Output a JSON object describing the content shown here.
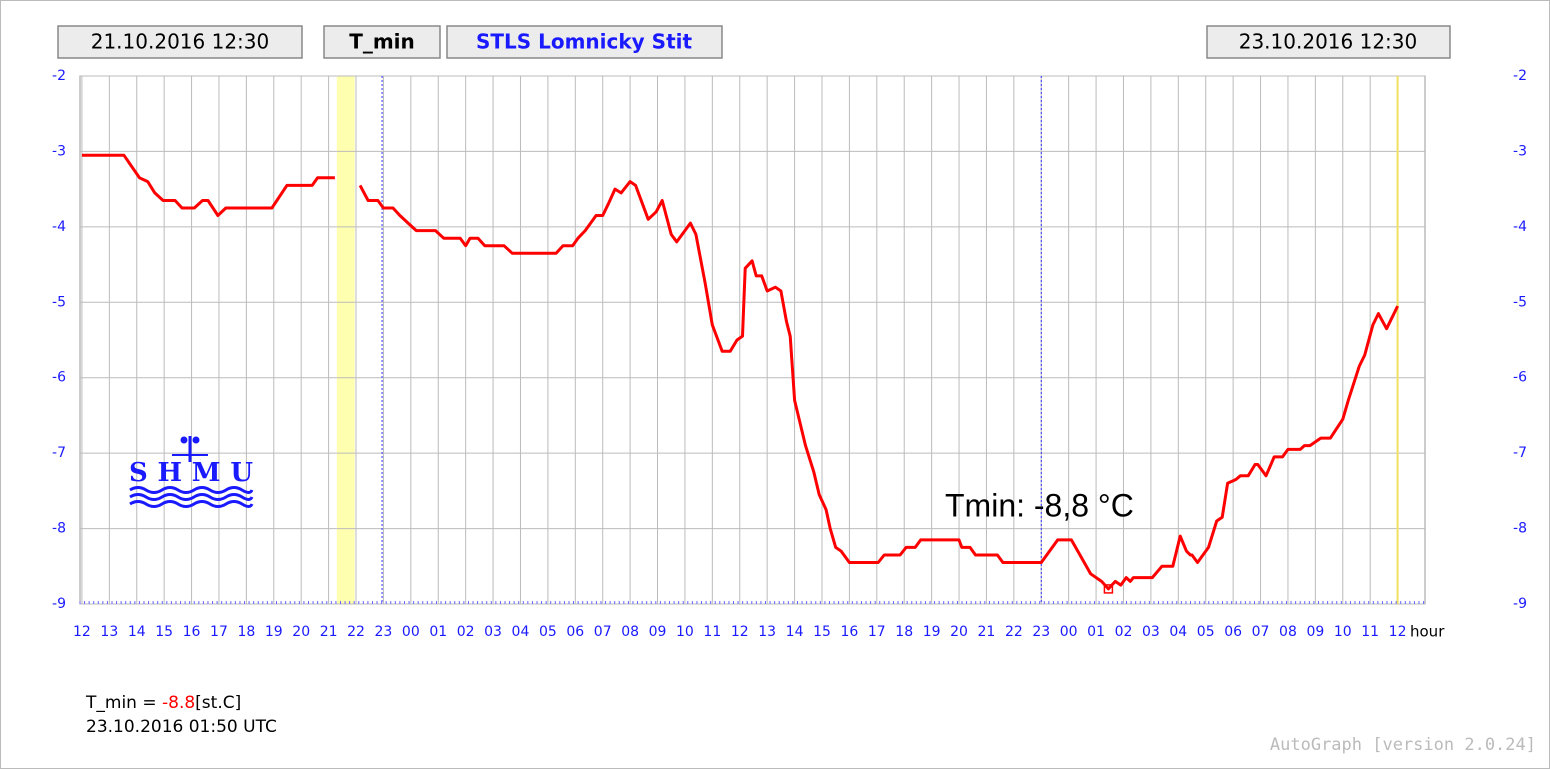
{
  "header": {
    "start": "21.10.2016 12:30",
    "variable": "T_min",
    "station": "STLS Lomnicky Stit",
    "end": "23.10.2016 12:30"
  },
  "chart_data": {
    "type": "line",
    "annotation": "Tmin: -8,8 °C",
    "x_label": "hour",
    "color": "#ff0000",
    "grid": true,
    "xlim": [
      -0.07,
      49
    ],
    "ylim": [
      -9,
      -2
    ],
    "y2lim": [
      -9,
      -2
    ],
    "yticks": [
      -2,
      -3,
      -4,
      -5,
      -6,
      -7,
      -8,
      -9
    ],
    "y2ticks": [
      -2,
      -3,
      -4,
      -5,
      -6,
      -7,
      -8,
      -9
    ],
    "xticks": [
      {
        "value": 0,
        "label": "12"
      },
      {
        "value": 1,
        "label": "13"
      },
      {
        "value": 2,
        "label": "14"
      },
      {
        "value": 3,
        "label": "15"
      },
      {
        "value": 4,
        "label": "16"
      },
      {
        "value": 5,
        "label": "17"
      },
      {
        "value": 6,
        "label": "18"
      },
      {
        "value": 7,
        "label": "19"
      },
      {
        "value": 8,
        "label": "20"
      },
      {
        "value": 9,
        "label": "21"
      },
      {
        "value": 10,
        "label": "22"
      },
      {
        "value": 11,
        "label": "23"
      },
      {
        "value": 12,
        "label": "00"
      },
      {
        "value": 13,
        "label": "01"
      },
      {
        "value": 14,
        "label": "02"
      },
      {
        "value": 15,
        "label": "03"
      },
      {
        "value": 16,
        "label": "04"
      },
      {
        "value": 17,
        "label": "05"
      },
      {
        "value": 18,
        "label": "06"
      },
      {
        "value": 19,
        "label": "07"
      },
      {
        "value": 20,
        "label": "08"
      },
      {
        "value": 21,
        "label": "09"
      },
      {
        "value": 22,
        "label": "10"
      },
      {
        "value": 23,
        "label": "11"
      },
      {
        "value": 24,
        "label": "12"
      },
      {
        "value": 25,
        "label": "13"
      },
      {
        "value": 26,
        "label": "14"
      },
      {
        "value": 27,
        "label": "15"
      },
      {
        "value": 28,
        "label": "16"
      },
      {
        "value": 29,
        "label": "17"
      },
      {
        "value": 30,
        "label": "18"
      },
      {
        "value": 31,
        "label": "19"
      },
      {
        "value": 32,
        "label": "20"
      },
      {
        "value": 33,
        "label": "21"
      },
      {
        "value": 34,
        "label": "22"
      },
      {
        "value": 35,
        "label": "23"
      },
      {
        "value": 36,
        "label": "00"
      },
      {
        "value": 37,
        "label": "01"
      },
      {
        "value": 38,
        "label": "02"
      },
      {
        "value": 39,
        "label": "03"
      },
      {
        "value": 40,
        "label": "04"
      },
      {
        "value": 41,
        "label": "05"
      },
      {
        "value": 42,
        "label": "06"
      },
      {
        "value": 43,
        "label": "07"
      },
      {
        "value": 44,
        "label": "08"
      },
      {
        "value": 45,
        "label": "09"
      },
      {
        "value": 46,
        "label": "10"
      },
      {
        "value": 47,
        "label": "11"
      },
      {
        "value": 48,
        "label": "12"
      }
    ],
    "highlight_band": [
      9.3,
      9.95
    ],
    "marker_lines": [
      10.95,
      35.0
    ],
    "end_line": 48,
    "x": [
      0,
      1.53,
      2.1,
      2.4,
      2.66,
      2.96,
      3.4,
      3.65,
      4.1,
      4.4,
      4.6,
      4.96,
      5.25,
      6.93,
      7.48,
      8.4,
      8.6,
      9.23,
      9.7,
      10.15,
      10.44,
      10.8,
      11.0,
      11.35,
      11.6,
      11.9,
      12.2,
      12.9,
      13.2,
      13.8,
      14.0,
      14.16,
      14.45,
      14.7,
      15.4,
      15.7,
      17.3,
      17.55,
      17.9,
      18.1,
      18.36,
      18.76,
      19.0,
      19.2,
      19.45,
      19.67,
      20.0,
      20.2,
      20.66,
      20.95,
      21.17,
      21.5,
      21.7,
      22.2,
      22.4,
      22.74,
      23.0,
      23.36,
      23.65,
      23.9,
      24.1,
      24.2,
      24.45,
      24.6,
      24.8,
      25.0,
      25.3,
      25.5,
      25.7,
      25.84,
      26.0,
      26.4,
      26.7,
      26.9,
      27.15,
      27.3,
      27.5,
      27.7,
      28.0,
      29.05,
      29.27,
      29.85,
      30.07,
      30.4,
      30.6,
      32.0,
      32.1,
      32.4,
      32.6,
      33.4,
      33.6,
      35.0,
      35.6,
      36.1,
      36.8,
      37.2,
      37.45,
      37.7,
      37.9,
      38.1,
      38.25,
      38.36,
      39.05,
      39.4,
      39.8,
      40.07,
      40.3,
      40.44,
      40.5,
      40.7,
      41.1,
      41.4,
      41.6,
      41.8,
      42.1,
      42.26,
      42.55,
      42.8,
      42.9,
      43.2,
      43.5,
      43.8,
      44.0,
      44.45,
      44.6,
      44.8,
      45.2,
      45.55,
      46.0,
      46.2,
      46.6,
      46.8,
      47.1,
      47.3,
      47.6,
      48.0
    ],
    "values": [
      -3.05,
      -3.05,
      -3.35,
      -3.4,
      -3.55,
      -3.65,
      -3.65,
      -3.75,
      -3.75,
      -3.65,
      -3.65,
      -3.85,
      -3.75,
      -3.75,
      -3.45,
      -3.45,
      -3.35,
      -3.35,
      null,
      -3.45,
      -3.65,
      -3.65,
      -3.75,
      -3.75,
      -3.85,
      -3.95,
      -4.05,
      -4.05,
      -4.15,
      -4.15,
      -4.25,
      -4.15,
      -4.15,
      -4.25,
      -4.25,
      -4.35,
      -4.35,
      -4.25,
      -4.25,
      -4.15,
      -4.05,
      -3.85,
      -3.85,
      -3.7,
      -3.5,
      -3.55,
      -3.4,
      -3.45,
      -3.9,
      -3.8,
      -3.65,
      -4.1,
      -4.2,
      -3.95,
      -4.1,
      -4.75,
      -5.3,
      -5.65,
      -5.65,
      -5.5,
      -5.45,
      -4.55,
      -4.45,
      -4.65,
      -4.65,
      -4.85,
      -4.8,
      -4.85,
      -5.25,
      -5.45,
      -6.3,
      -6.9,
      -7.25,
      -7.55,
      -7.75,
      -8.0,
      -8.25,
      -8.3,
      -8.45,
      -8.45,
      -8.35,
      -8.35,
      -8.25,
      -8.25,
      -8.15,
      -8.15,
      -8.25,
      -8.25,
      -8.35,
      -8.35,
      -8.45,
      -8.45,
      -8.15,
      -8.15,
      -8.6,
      -8.7,
      -8.8,
      -8.7,
      -8.75,
      -8.65,
      -8.7,
      -8.65,
      -8.65,
      -8.5,
      -8.5,
      -8.1,
      -8.3,
      -8.35,
      -8.35,
      -8.45,
      -8.25,
      -7.9,
      -7.85,
      -7.4,
      -7.35,
      -7.3,
      -7.3,
      -7.15,
      -7.15,
      -7.3,
      -7.05,
      -7.05,
      -6.95,
      -6.95,
      -6.9,
      -6.9,
      -6.8,
      -6.8,
      -6.55,
      -6.3,
      -5.85,
      -5.7,
      -5.3,
      -5.15,
      -5.35,
      -5.05
    ],
    "min_marker": {
      "x": 37.45,
      "value": -8.8
    }
  },
  "footer": {
    "variable": "T_min =",
    "unit": "[st.C]",
    "time": "23.10.2016 01:50 UTC",
    "version": "AutoGraph [version 2.0.24]"
  },
  "logo": "SHMU"
}
